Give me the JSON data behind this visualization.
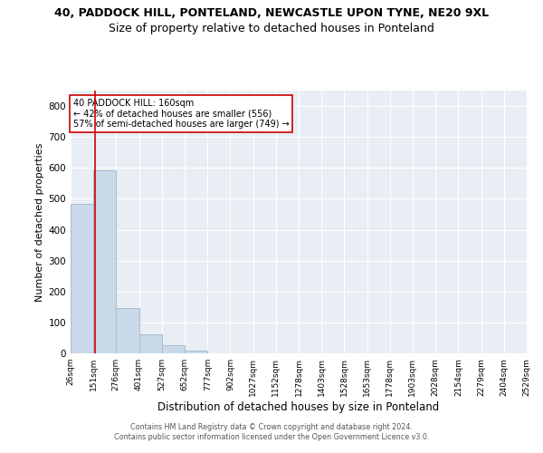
{
  "title1": "40, PADDOCK HILL, PONTELAND, NEWCASTLE UPON TYNE, NE20 9XL",
  "title2": "Size of property relative to detached houses in Ponteland",
  "xlabel": "Distribution of detached houses by size in Ponteland",
  "ylabel": "Number of detached properties",
  "bar_color": "#c9d9e9",
  "bar_edgecolor": "#aabccc",
  "vline_x": 160,
  "vline_color": "#cc0000",
  "annotation_text": "40 PADDOCK HILL: 160sqm\n← 42% of detached houses are smaller (556)\n57% of semi-detached houses are larger (749) →",
  "annotation_box_color": "white",
  "annotation_box_edgecolor": "#cc0000",
  "bin_edges": [
    26,
    151,
    276,
    401,
    527,
    652,
    777,
    902,
    1027,
    1152,
    1278,
    1403,
    1528,
    1653,
    1778,
    1903,
    2028,
    2154,
    2279,
    2404,
    2529
  ],
  "bar_heights": [
    484,
    591,
    148,
    62,
    25,
    8,
    0,
    0,
    0,
    0,
    0,
    0,
    0,
    0,
    0,
    0,
    0,
    0,
    0,
    0
  ],
  "ylim": [
    0,
    850
  ],
  "yticks": [
    0,
    100,
    200,
    300,
    400,
    500,
    600,
    700,
    800
  ],
  "background_color": "#e8eef4",
  "grid_color": "white",
  "footer1": "Contains HM Land Registry data © Crown copyright and database right 2024.",
  "footer2": "Contains public sector information licensed under the Open Government Licence v3.0.",
  "title1_fontsize": 9,
  "title2_fontsize": 9,
  "tick_labels": [
    "26sqm",
    "151sqm",
    "276sqm",
    "401sqm",
    "527sqm",
    "652sqm",
    "777sqm",
    "902sqm",
    "1027sqm",
    "1152sqm",
    "1278sqm",
    "1403sqm",
    "1528sqm",
    "1653sqm",
    "1778sqm",
    "1903sqm",
    "2028sqm",
    "2154sqm",
    "2279sqm",
    "2404sqm",
    "2529sqm"
  ]
}
